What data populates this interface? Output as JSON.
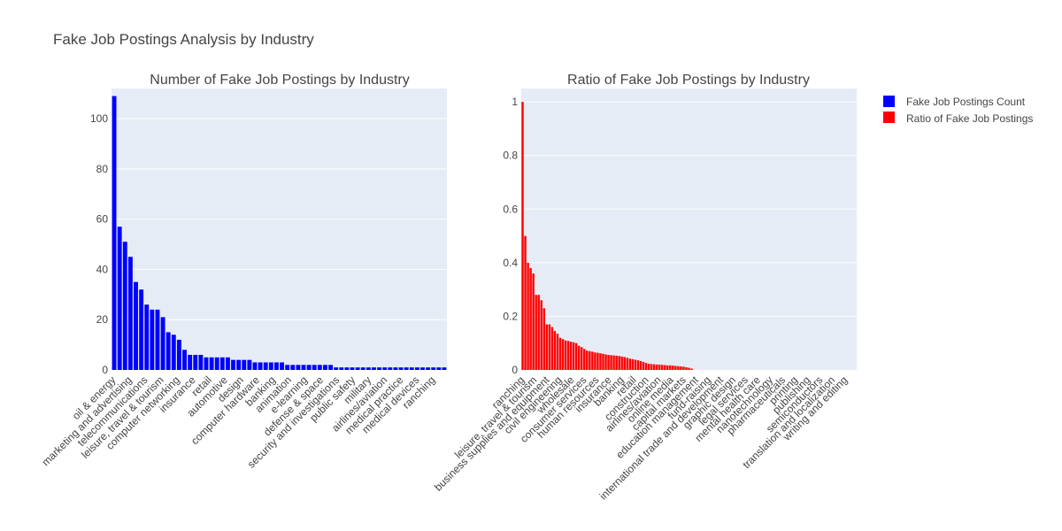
{
  "title": "Fake Job Postings Analysis by Industry",
  "legend": [
    {
      "label": "Fake Job Postings Count",
      "color": "#0000ff"
    },
    {
      "label": "Ratio of Fake Job Postings",
      "color": "#ff0000"
    }
  ],
  "colors": {
    "plot_bg": "#e5ecf6",
    "count_bar": "#0000ff",
    "ratio_bar": "#ff0000"
  },
  "chart_data": [
    {
      "type": "bar",
      "title": "Number of Fake Job Postings by Industry",
      "xlabel": "",
      "ylabel": "",
      "ylim": [
        0,
        112
      ],
      "yticks": [
        0,
        20,
        40,
        60,
        80,
        100
      ],
      "values": [
        109,
        57,
        51,
        45,
        35,
        32,
        26,
        24,
        24,
        21,
        15,
        14,
        12,
        8,
        6,
        6,
        6,
        5,
        5,
        5,
        5,
        5,
        4,
        4,
        4,
        4,
        3,
        3,
        3,
        3,
        3,
        3,
        2,
        2,
        2,
        2,
        2,
        2,
        2,
        2,
        2,
        1,
        1,
        1,
        1,
        1,
        1,
        1,
        1,
        1,
        1,
        1,
        1,
        1,
        1,
        1,
        1,
        1,
        1,
        1,
        1,
        1
      ],
      "tick_labels": [
        "oil & energy",
        "marketing and advertising",
        "telecommunications",
        "leisure, travel & tourism",
        "computer networking",
        "insurance",
        "retail",
        "automotive",
        "design",
        "computer hardware",
        "banking",
        "animation",
        "e-learning",
        "defense & space",
        "security and investigations",
        "public safety",
        "military",
        "airlines/aviation",
        "medical practice",
        "medical devices",
        "ranching"
      ]
    },
    {
      "type": "bar",
      "title": "Ratio of Fake Job Postings by Industry",
      "xlabel": "",
      "ylabel": "",
      "ylim": [
        0,
        1.05
      ],
      "yticks": [
        "0",
        "0.2",
        "0.4",
        "0.6",
        "0.8",
        "1"
      ],
      "values": [
        1,
        0.5,
        0.4,
        0.38,
        0.36,
        0.28,
        0.28,
        0.26,
        0.23,
        0.17,
        0.17,
        0.16,
        0.145,
        0.135,
        0.12,
        0.115,
        0.11,
        0.108,
        0.105,
        0.103,
        0.1,
        0.09,
        0.085,
        0.078,
        0.072,
        0.07,
        0.068,
        0.065,
        0.064,
        0.062,
        0.06,
        0.058,
        0.056,
        0.055,
        0.054,
        0.053,
        0.052,
        0.05,
        0.048,
        0.045,
        0.042,
        0.04,
        0.038,
        0.036,
        0.033,
        0.03,
        0.026,
        0.023,
        0.022,
        0.021,
        0.02,
        0.02,
        0.019,
        0.018,
        0.017,
        0.017,
        0.016,
        0.015,
        0.014,
        0.013,
        0.012,
        0.01,
        0.008,
        0.005,
        0,
        0,
        0,
        0,
        0,
        0,
        0,
        0,
        0,
        0,
        0,
        0,
        0,
        0,
        0,
        0,
        0,
        0,
        0,
        0,
        0,
        0,
        0,
        0,
        0,
        0,
        0,
        0,
        0,
        0,
        0,
        0,
        0,
        0,
        0,
        0,
        0,
        0,
        0,
        0,
        0,
        0,
        0,
        0,
        0,
        0,
        0,
        0,
        0,
        0,
        0,
        0,
        0,
        0,
        0,
        0,
        0,
        0,
        0,
        0,
        0
      ],
      "tick_labels": [
        "ranching",
        "leisure, travel & tourism",
        "business supplies and equipment",
        "civil engineering",
        "wholesale",
        "consumer services",
        "human resources",
        "insurance",
        "banking",
        "retail",
        "construction",
        "airlines/aviation",
        "online media",
        "capital markets",
        "education management",
        "fund-raising",
        "international trade and development",
        "graphic design",
        "legal services",
        "mental health care",
        "nanotechnology",
        "pharmaceuticals",
        "printing",
        "publishing",
        "semiconductors",
        "translation and localization",
        "writing and editing"
      ]
    }
  ]
}
